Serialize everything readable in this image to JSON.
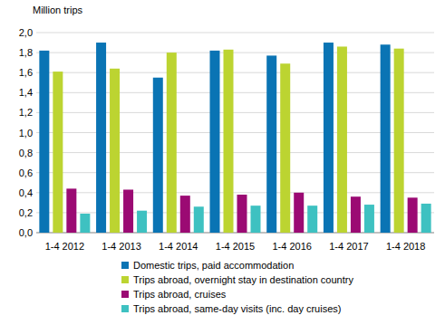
{
  "chart_data": {
    "type": "bar",
    "y_label": "Million trips",
    "categories": [
      "1-4 2012",
      "1-4 2013",
      "1-4 2014",
      "1-4 2015",
      "1-4 2016",
      "1-4 2017",
      "1-4 2018"
    ],
    "series": [
      {
        "name": "Domestic trips, paid accommodation",
        "color": "#0a74b4",
        "values": [
          1.82,
          1.9,
          1.55,
          1.82,
          1.77,
          1.9,
          1.88
        ]
      },
      {
        "name": "Trips abroad, overnight stay in destination country",
        "color": "#bcd431",
        "values": [
          1.61,
          1.64,
          1.8,
          1.83,
          1.69,
          1.86,
          1.84
        ]
      },
      {
        "name": "Trips abroad, cruises",
        "color": "#9b0a73",
        "values": [
          0.44,
          0.43,
          0.37,
          0.38,
          0.4,
          0.36,
          0.35
        ]
      },
      {
        "name": "Trips abroad, same-day visits (inc. day cruises)",
        "color": "#3ec1c1",
        "values": [
          0.19,
          0.22,
          0.26,
          0.27,
          0.27,
          0.28,
          0.29
        ]
      }
    ],
    "ylim": [
      0,
      2
    ],
    "yticks": [
      {
        "value": 0,
        "label": "0,0"
      },
      {
        "value": 0.2,
        "label": "0,2"
      },
      {
        "value": 0.4,
        "label": "0,4"
      },
      {
        "value": 0.6,
        "label": "0,6"
      },
      {
        "value": 0.8,
        "label": "0,8"
      },
      {
        "value": 1,
        "label": "1,0"
      },
      {
        "value": 1.2,
        "label": "1,2"
      },
      {
        "value": 1.4,
        "label": "1,4"
      },
      {
        "value": 1.6,
        "label": "1,6"
      },
      {
        "value": 1.8,
        "label": "1,8"
      },
      {
        "value": 2,
        "label": "2,0"
      }
    ],
    "grid": true,
    "legend": "bottom"
  }
}
